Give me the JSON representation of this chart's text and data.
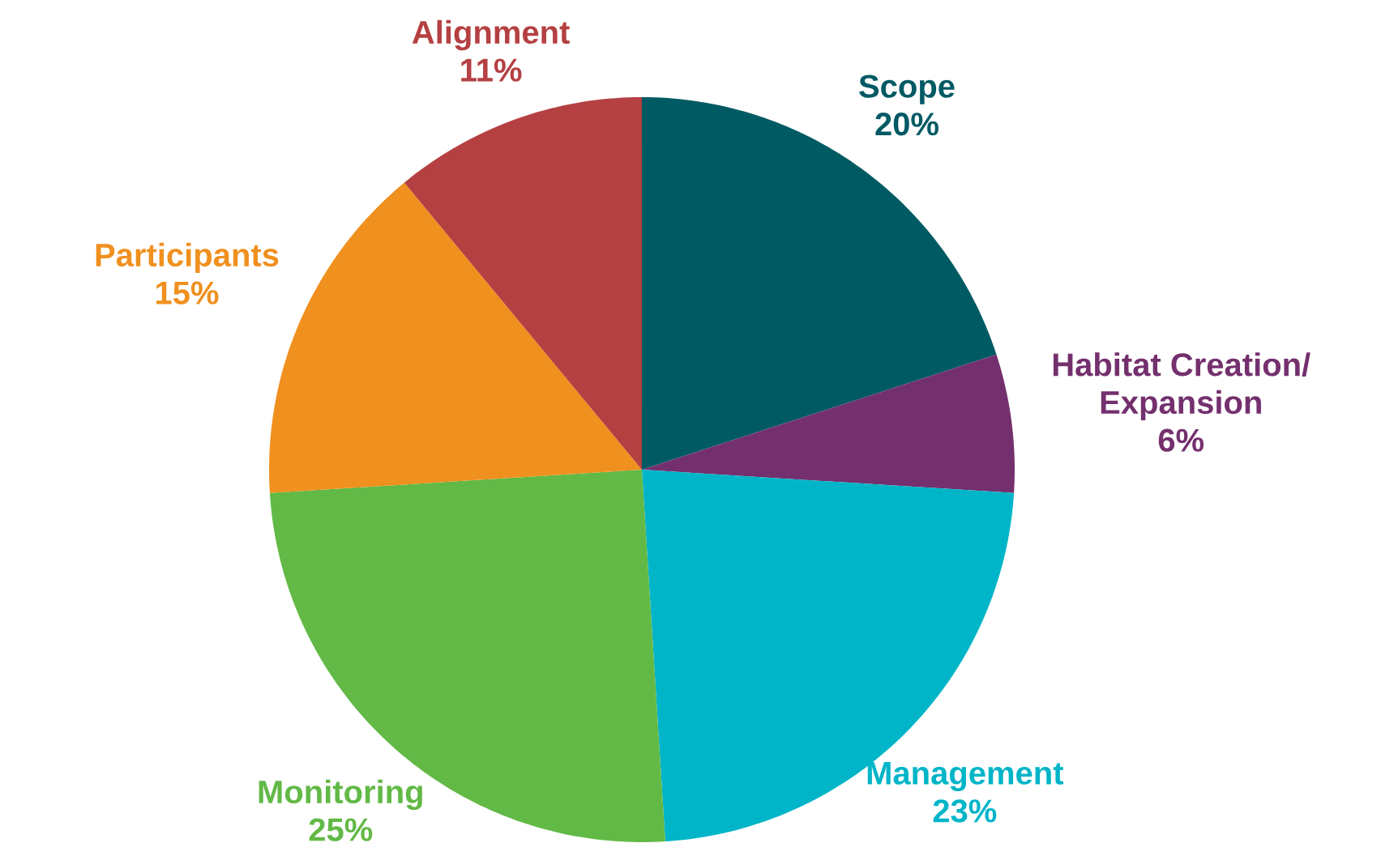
{
  "chart_data": {
    "type": "pie",
    "categories": [
      "Scope",
      "Habitat Creation/ Expansion",
      "Management",
      "Monitoring",
      "Participants",
      "Alignment"
    ],
    "values": [
      20,
      6,
      23,
      25,
      15,
      11
    ],
    "value_labels": [
      "20%",
      "6%",
      "23%",
      "25%",
      "15%",
      "11%"
    ],
    "colors": [
      "#005a64",
      "#74306e",
      "#00b5c8",
      "#62b946",
      "#f0901e",
      "#b54042"
    ]
  }
}
